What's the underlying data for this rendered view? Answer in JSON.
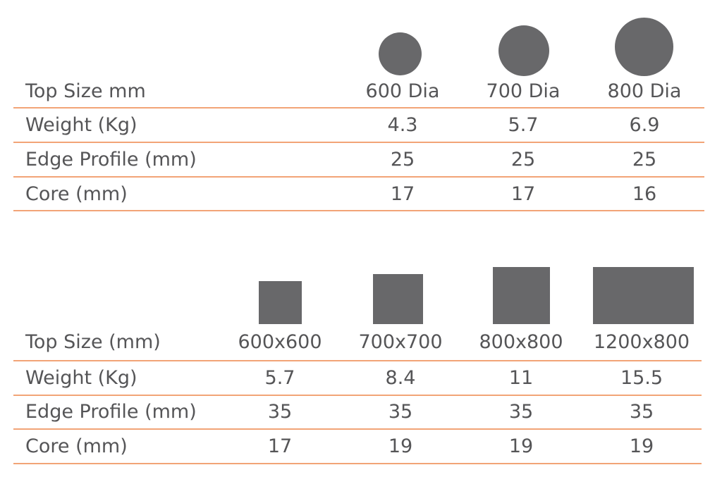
{
  "round_table": {
    "header_label": "Top Size mm",
    "sizes": [
      "600 Dia",
      "700 Dia",
      "800 Dia"
    ],
    "rows": [
      {
        "label": "Weight (Kg)",
        "values": [
          "4.3",
          "5.7",
          "6.9"
        ]
      },
      {
        "label": "Edge Profile (mm)",
        "values": [
          "25",
          "25",
          "25"
        ]
      },
      {
        "label": "Core (mm)",
        "values": [
          "17",
          "17",
          "16"
        ]
      }
    ],
    "shape_icon": "circle-icon"
  },
  "square_table": {
    "header_label": "Top Size (mm)",
    "sizes": [
      "600x600",
      "700x700",
      "800x800",
      "1200x800"
    ],
    "rows": [
      {
        "label": "Weight (Kg)",
        "values": [
          "5.7",
          "8.4",
          "11",
          "15.5"
        ]
      },
      {
        "label": "Edge Profile (mm)",
        "values": [
          "35",
          "35",
          "35",
          "35"
        ]
      },
      {
        "label": "Core (mm)",
        "values": [
          "17",
          "19",
          "19",
          "19"
        ]
      }
    ],
    "shape_icon": "rectangle-icon"
  },
  "colors": {
    "shape": "#68686a",
    "text": "#555557",
    "rule": "#f2a477"
  }
}
